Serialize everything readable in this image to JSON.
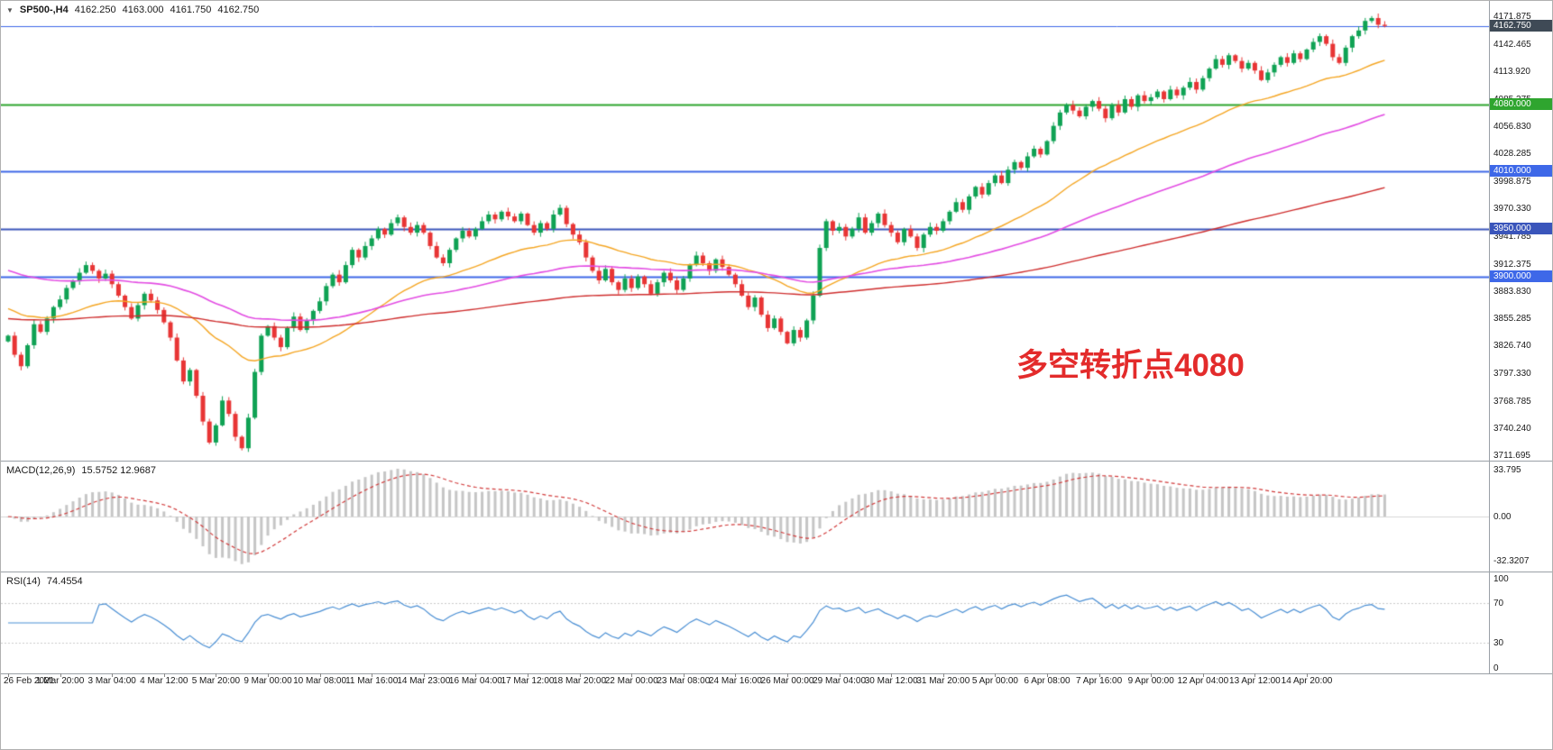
{
  "header": {
    "collapse_icon": "▼",
    "symbol_period": "SP500-,H4",
    "open": "4162.250",
    "high": "4163.000",
    "low": "4161.750",
    "close": "4162.750"
  },
  "annotation": {
    "text": "多空转折点4080",
    "color": "#e32b2b"
  },
  "panels": {
    "macd": {
      "title": "MACD(12,26,9)",
      "values": "15.5752 12.9687"
    },
    "rsi": {
      "title": "RSI(14)",
      "value": "74.4554"
    }
  },
  "chart_data": [
    {
      "type": "candlestick",
      "title": "SP500- H4",
      "x_labels": [
        "26 Feb 2021",
        "1 Mar 20:00",
        "3 Mar 04:00",
        "4 Mar 12:00",
        "5 Mar 20:00",
        "9 Mar 00:00",
        "10 Mar 08:00",
        "11 Mar 16:00",
        "14 Mar 23:00",
        "16 Mar 04:00",
        "17 Mar 12:00",
        "18 Mar 20:00",
        "22 Mar 00:00",
        "23 Mar 08:00",
        "24 Mar 16:00",
        "26 Mar 00:00",
        "29 Mar 04:00",
        "30 Mar 12:00",
        "31 Mar 20:00",
        "5 Apr 00:00",
        "6 Apr 08:00",
        "7 Apr 16:00",
        "9 Apr 00:00",
        "12 Apr 04:00",
        "13 Apr 12:00",
        "14 Apr 20:00"
      ],
      "bars_per_label": 8,
      "x_start": 8,
      "bar_spacing": 7.2,
      "ylim": [
        3707,
        4189
      ],
      "y_ticks": [
        4171.875,
        4142.465,
        4113.92,
        4085.375,
        4056.83,
        4028.285,
        3998.875,
        3970.33,
        3941.785,
        3912.375,
        3883.83,
        3855.285,
        3826.74,
        3797.33,
        3768.785,
        3740.24,
        3711.695
      ],
      "closes": [
        3838,
        3818,
        3806,
        3828,
        3850,
        3842,
        3856,
        3868,
        3876,
        3888,
        3895,
        3904,
        3912,
        3906,
        3898,
        3903,
        3892,
        3880,
        3868,
        3856,
        3870,
        3882,
        3875,
        3865,
        3852,
        3836,
        3812,
        3790,
        3802,
        3775,
        3748,
        3726,
        3744,
        3770,
        3756,
        3732,
        3720,
        3752,
        3800,
        3838,
        3848,
        3836,
        3826,
        3846,
        3858,
        3844,
        3854,
        3864,
        3874,
        3890,
        3902,
        3894,
        3912,
        3928,
        3920,
        3932,
        3940,
        3950,
        3944,
        3956,
        3962,
        3952,
        3946,
        3954,
        3946,
        3932,
        3920,
        3914,
        3928,
        3940,
        3948,
        3942,
        3950,
        3958,
        3965,
        3960,
        3968,
        3963,
        3958,
        3966,
        3954,
        3946,
        3956,
        3950,
        3965,
        3972,
        3955,
        3944,
        3936,
        3920,
        3906,
        3896,
        3908,
        3894,
        3886,
        3898,
        3888,
        3900,
        3892,
        3882,
        3894,
        3904,
        3896,
        3886,
        3898,
        3912,
        3922,
        3914,
        3906,
        3918,
        3910,
        3902,
        3892,
        3880,
        3868,
        3878,
        3860,
        3846,
        3856,
        3842,
        3830,
        3844,
        3836,
        3854,
        3880,
        3930,
        3958,
        3948,
        3952,
        3942,
        3950,
        3962,
        3946,
        3956,
        3966,
        3954,
        3946,
        3936,
        3950,
        3942,
        3930,
        3944,
        3952,
        3948,
        3958,
        3968,
        3978,
        3970,
        3984,
        3994,
        3986,
        3998,
        4006,
        3998,
        4012,
        4020,
        4014,
        4026,
        4034,
        4028,
        4042,
        4058,
        4072,
        4080,
        4074,
        4068,
        4078,
        4084,
        4076,
        4066,
        4080,
        4072,
        4086,
        4078,
        4090,
        4084,
        4088,
        4094,
        4086,
        4096,
        4090,
        4098,
        4104,
        4096,
        4108,
        4118,
        4128,
        4122,
        4132,
        4126,
        4118,
        4124,
        4116,
        4106,
        4114,
        4122,
        4130,
        4124,
        4134,
        4128,
        4138,
        4146,
        4152,
        4144,
        4130,
        4124,
        4140,
        4152,
        4158,
        4168,
        4171,
        4164,
        4162.75
      ],
      "colors": {
        "up": "#0fa254",
        "down": "#e83535",
        "background": "#ffffff"
      },
      "overlays": [
        {
          "name": "ma-fast",
          "period": 34,
          "seed": 3868,
          "color": "#f5a623",
          "width": 1.4
        },
        {
          "name": "ma-mid",
          "period": 84,
          "seed": 3908,
          "color": "#e34de3",
          "width": 1.6
        },
        {
          "name": "ma-slow",
          "period": 200,
          "seed": 3856,
          "color": "#cf2e2e",
          "width": 1.4
        }
      ],
      "hlines": [
        {
          "price": 4162.75,
          "label": "4162.750",
          "line_color": "#3e68e8",
          "tag_color": "#3f4a56",
          "width": 1
        },
        {
          "price": 4080.0,
          "label": "4080.000",
          "line_color": "#2fa52f",
          "tag_color": "#2fa52f",
          "width": 2
        },
        {
          "price": 4010.0,
          "label": "4010.000",
          "line_color": "#3e68e8",
          "tag_color": "#3e68e8",
          "width": 2
        },
        {
          "price": 3950.0,
          "label": "3950.000",
          "line_color": "#3a55bb",
          "tag_color": "#3a55bb",
          "width": 2
        },
        {
          "price": 3900.0,
          "label": "3900.000",
          "line_color": "#3e68e8",
          "tag_color": "#3e68e8",
          "width": 2
        }
      ]
    },
    {
      "type": "macd",
      "params": [
        12,
        26,
        9
      ],
      "current_values": [
        15.5752,
        12.9687
      ],
      "ylim": [
        -40,
        40
      ],
      "axis_ticks": [
        {
          "value": 33.795,
          "label": "33.795"
        },
        {
          "value": 0,
          "label": "0.00"
        },
        {
          "value": -32.3207,
          "label": "-32.3207"
        }
      ],
      "histogram_color": "#c6c6c6",
      "signal_color": "#d23b3b"
    },
    {
      "type": "rsi",
      "period": 14,
      "current_value": 74.4554,
      "ylim": [
        0,
        100
      ],
      "axis_ticks": [
        {
          "value": 100,
          "label": "100"
        },
        {
          "value": 70,
          "label": "70"
        },
        {
          "value": 30,
          "label": "30"
        },
        {
          "value": 0,
          "label": "0"
        }
      ],
      "levels": [
        70,
        30
      ],
      "line_color": "#4a8fd4"
    }
  ]
}
